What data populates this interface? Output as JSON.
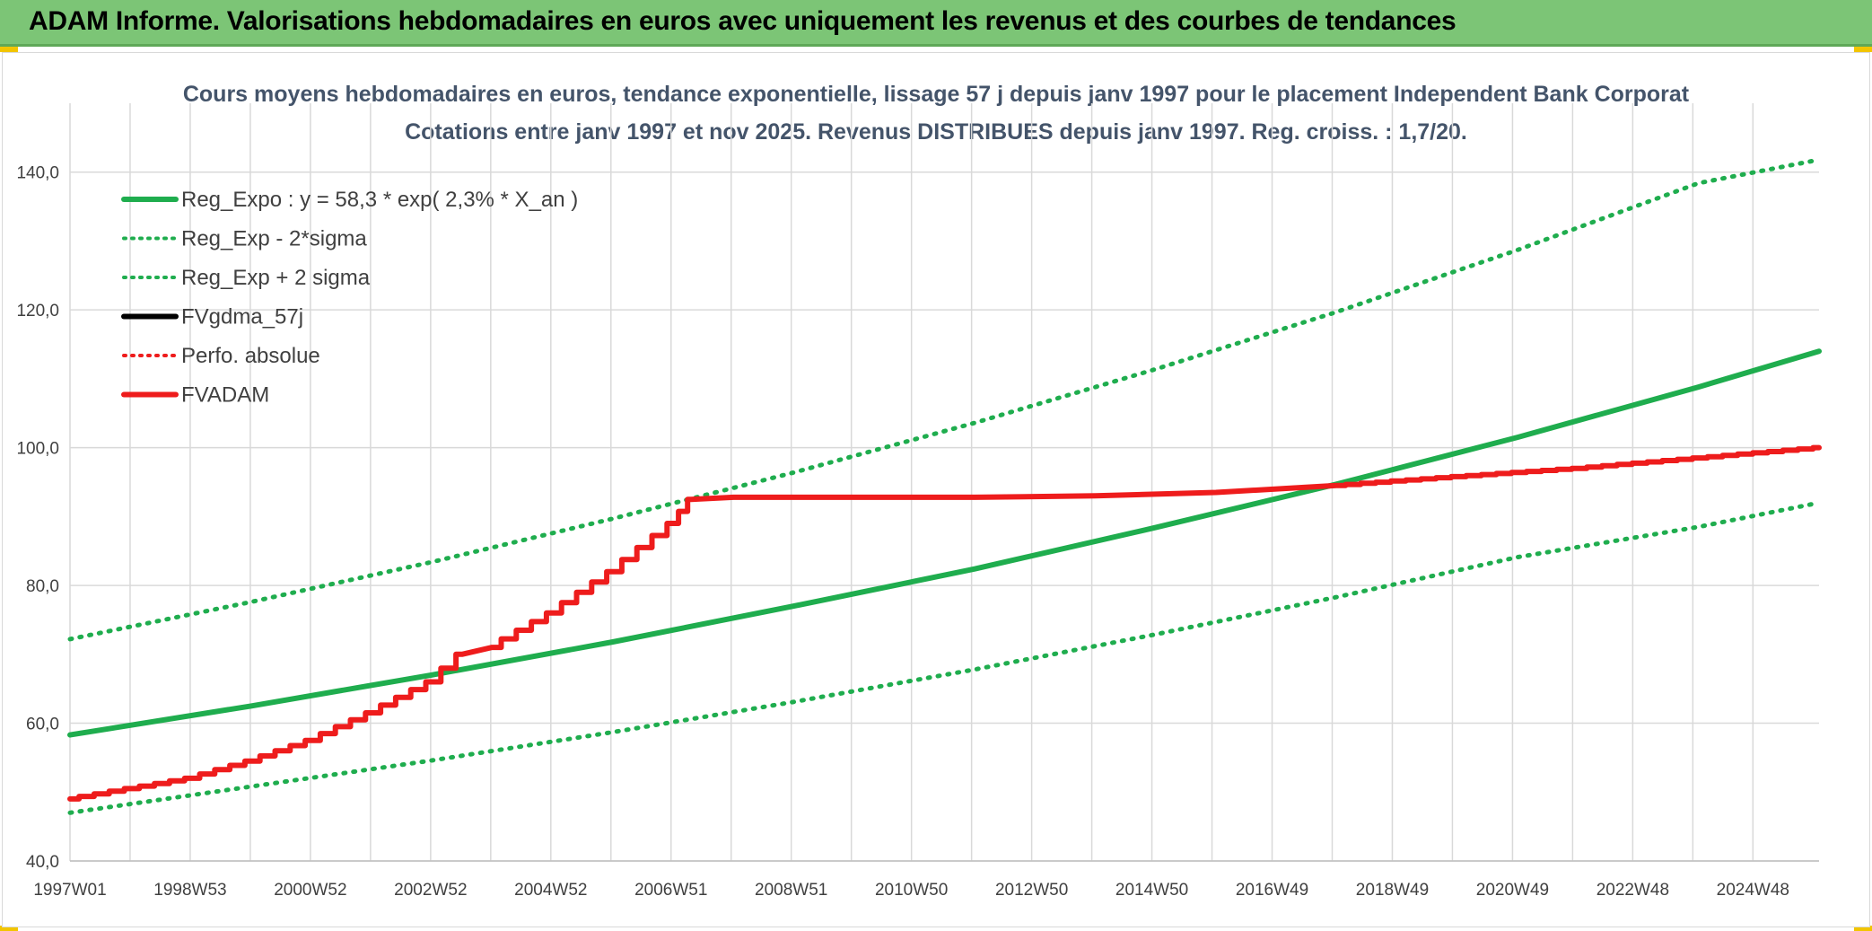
{
  "banner": {
    "title": "ADAM Informe. Valorisations hebdomadaires en euros avec uniquement les revenus et des courbes de tendances"
  },
  "colors": {
    "banner": "#7cc576",
    "green": "#1fad4e",
    "red": "#ee1c1c",
    "black": "#000000",
    "grid": "#d9d9d9"
  },
  "chart_data": {
    "type": "line",
    "title": "Cours moyens hebdomadaires en euros, tendance exponentielle, lissage 57 j depuis janv 1997 pour le placement Independent Bank Corporat",
    "subtitle": "Cotations entre janv 1997 et nov 2025. Revenus DISTRIBUES depuis janv 1997. Reg. croiss. : 1,7/20.",
    "xlabel": "",
    "ylabel": "",
    "ylim": [
      40,
      150
    ],
    "y_ticks": [
      "40,0",
      "60,0",
      "80,0",
      "100,0",
      "120,0",
      "140,0"
    ],
    "x_ticks": [
      "1997W01",
      "1998W53",
      "2000W52",
      "2002W52",
      "2004W52",
      "2006W51",
      "2008W51",
      "2010W50",
      "2012W50",
      "2014W50",
      "2016W49",
      "2018W49",
      "2020W49",
      "2022W48",
      "2024W48"
    ],
    "x_range_years": [
      1997.0,
      2026.0
    ],
    "grid": true,
    "legend_position": "top-left",
    "series": [
      {
        "name": "Reg_Expo : y = 58,3 * exp( 2,3% *  X_an )",
        "style": "solid",
        "color": "#1fad4e",
        "x": [
          1997,
          2000,
          2003,
          2006,
          2009,
          2012,
          2015,
          2018,
          2021,
          2024,
          2026
        ],
        "values": [
          58.3,
          62.5,
          67.0,
          71.8,
          77.0,
          82.4,
          88.4,
          94.7,
          101.5,
          108.8,
          114.0
        ]
      },
      {
        "name": "Reg_Exp - 2*sigma",
        "style": "dotted",
        "color": "#1fad4e",
        "x": [
          1997,
          2000,
          2003,
          2006,
          2009,
          2012,
          2015,
          2018,
          2021,
          2024,
          2026
        ],
        "values": [
          47.0,
          50.8,
          54.6,
          58.7,
          63.1,
          67.8,
          72.9,
          78.3,
          84.1,
          88.5,
          92.0
        ]
      },
      {
        "name": "Reg_Exp + 2 sigma",
        "style": "dotted",
        "color": "#1fad4e",
        "x": [
          1997,
          2000,
          2003,
          2006,
          2009,
          2012,
          2015,
          2018,
          2021,
          2024,
          2026
        ],
        "values": [
          72.2,
          77.6,
          83.4,
          89.7,
          96.4,
          103.6,
          111.4,
          119.7,
          128.7,
          138.4,
          141.8
        ]
      },
      {
        "name": "FVgdma_57j",
        "style": "solid",
        "color": "#000000",
        "x": [],
        "values": []
      },
      {
        "name": "Perfo. absolue",
        "style": "dotted",
        "color": "#ee1c1c",
        "x": [],
        "values": []
      },
      {
        "name": "FVADAM",
        "style": "solid-steps",
        "color": "#ee1c1c",
        "x": [
          1997,
          1998,
          1999,
          2000,
          2001,
          2002,
          2003,
          2003.5,
          2004,
          2005,
          2006,
          2007,
          2007.3,
          2008,
          2010,
          2012,
          2014,
          2016,
          2018,
          2020,
          2022,
          2024,
          2026
        ],
        "values": [
          49.0,
          50.5,
          52.0,
          54.5,
          57.5,
          61.5,
          66.0,
          70.0,
          71.0,
          76.0,
          82.0,
          89.0,
          92.5,
          92.8,
          92.8,
          92.8,
          93.0,
          93.5,
          94.5,
          95.8,
          97.0,
          98.5,
          100.0
        ]
      }
    ]
  }
}
